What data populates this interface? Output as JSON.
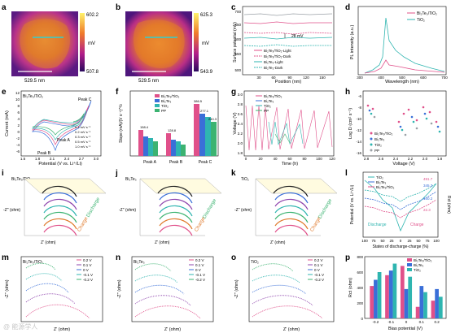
{
  "panels": {
    "a": {
      "letter": "a",
      "scale": "529.5 nm",
      "cb_top": "602.2",
      "cb_unit": "mV",
      "cb_bottom": "507.8"
    },
    "b": {
      "letter": "b",
      "scale": "529.5 nm",
      "cb_top": "625.3",
      "cb_unit": "mV",
      "cb_bottom": "543.9"
    },
    "c": {
      "letter": "c",
      "ylabel": "Surface potential (mV)",
      "xlabel": "Position (nm)",
      "yticks": [
        "500",
        "550",
        "600",
        "650",
        "700"
      ],
      "xticks": [
        "30",
        "60",
        "90",
        "120",
        "150"
      ],
      "annot": "28 mV",
      "legend": [
        "Bi₂Te₃/TiO₂-Light",
        "Bi₂Te₃/TiO₂-Dark",
        "Bi₂Te₃-Light",
        "Bi₂Te₃-Dark"
      ]
    },
    "d": {
      "letter": "d",
      "ylabel": "PL intensity (a.u.)",
      "xlabel": "Wavelength (nm)",
      "xticks": [
        "300",
        "400",
        "500",
        "600",
        "700"
      ],
      "legend": [
        "Bi₂Te₃/TiO₂",
        "TiO₂"
      ]
    },
    "e": {
      "letter": "e",
      "title": "Bi₂Te₃/TiO₂",
      "ylabel": "Current (mA)",
      "xlabel": "Potential (V vs. Li⁺/Li)",
      "xticks": [
        "1.5",
        "1.8",
        "2.1",
        "2.4",
        "2.7",
        "3.0"
      ],
      "yticks": [
        "12",
        "10",
        "8",
        "6",
        "4",
        "2",
        "0",
        "-2",
        "-4",
        "-6"
      ],
      "peaks": [
        "Peak A",
        "Peak B",
        "Peak C"
      ],
      "legend": [
        "0.1 mV s⁻¹",
        "0.2 mV s⁻¹",
        "0.3 mV s⁻¹",
        "0.5 mV s⁻¹",
        "1.0 mV s⁻¹"
      ]
    },
    "f": {
      "letter": "f",
      "ylabel": "Slope (mA)/(V s⁻¹)^½",
      "groups": [
        "Peak A",
        "Peak B",
        "Peak C"
      ],
      "legend": [
        "Bi₂Te₃/TiO₂",
        "Bi₂Te₃",
        "TiO₂",
        "PP"
      ],
      "values": [
        "158.4",
        "128.8",
        "386.5",
        "120.1",
        "98.2",
        "277.1",
        "84.3",
        "84.3",
        "240.3"
      ]
    },
    "g": {
      "letter": "g",
      "ylabel": "Voltage (V)",
      "xlabel": "Time (h)",
      "yticks": [
        "1.8",
        "2.0",
        "2.2",
        "2.4",
        "2.6",
        "2.8",
        "3.0"
      ],
      "xticks": [
        "0",
        "20",
        "40",
        "60",
        "80",
        "100",
        "120"
      ],
      "legend": [
        "Bi₂Te₃/TiO₂",
        "Bi₂Te₃",
        "TiO₂",
        "PP"
      ]
    },
    "h": {
      "letter": "h",
      "ylabel": "Log D (cm² s⁻¹)",
      "xlabel": "Voltage (V)",
      "yticks": [
        "-6",
        "-8",
        "-10",
        "-12",
        "-14",
        "-16"
      ],
      "xticks": [
        "2.8",
        "2.6",
        "2.4",
        "2.2",
        "2.0",
        "1.8"
      ],
      "legend": [
        "Bi₂Te₃/TiO₂",
        "Bi₂Te₃",
        "TiO₂",
        "PP"
      ]
    },
    "i": {
      "letter": "i",
      "title": "Bi₂Te₃/TiO₂",
      "zlabel": "Z' (ohm)",
      "ylabel": "-Z'' (ohm)",
      "charge": "Charge",
      "discharge": "Discharge"
    },
    "j": {
      "letter": "j",
      "title": "Bi₂Te₃",
      "zlabel": "Z' (ohm)",
      "ylabel": "-Z'' (ohm)",
      "charge": "Charge",
      "discharge": "Discharge"
    },
    "k": {
      "letter": "k",
      "title": "TiO₂",
      "zlabel": "Z' (ohm)",
      "ylabel": "-Z'' (ohm)",
      "charge": "Charge",
      "discharge": "Discharge"
    },
    "l": {
      "letter": "l",
      "ylabel": "Potential (V vs. Li⁺/Li)",
      "ylabel2": "Rct (ohm)",
      "xlabel": "States of discharge-charge (%)",
      "xticks": [
        "100",
        "75",
        "50",
        "25",
        "0",
        "25",
        "50",
        "75",
        "100"
      ],
      "legend": [
        "TiO₂",
        "Bi₂Te₃",
        "Bi₂Te₃/TiO₂"
      ],
      "discharge": "Discharge",
      "charge": "Charge",
      "vals": [
        "491.7",
        "345.3",
        "160.2",
        "22.3"
      ]
    },
    "m": {
      "letter": "m",
      "title": "Bi₂Te₃/TiO₂",
      "ylabel": "-Z'' (ohm)",
      "xlabel": "Z' (ohm)",
      "legend": [
        "0.2 V",
        "0.1 V",
        "0 V",
        "-0.1 V",
        "-0.2 V"
      ]
    },
    "n": {
      "letter": "n",
      "title": "Bi₂Te₃",
      "ylabel": "-Z'' (ohm)",
      "xlabel": "Z' (ohm)",
      "legend": [
        "0.2 V",
        "0.1 V",
        "0 V",
        "-0.1 V",
        "-0.2 V"
      ]
    },
    "o": {
      "letter": "o",
      "title": "TiO₂",
      "ylabel": "-Z'' (ohm)",
      "xlabel": "Z' (ohm)",
      "legend": [
        "0.2 V",
        "0.1 V",
        "0 V",
        "-0.1 V",
        "-0.2 V"
      ]
    },
    "p": {
      "letter": "p",
      "ylabel": "Rct (ohm)",
      "xlabel": "Bias potential (V)",
      "xticks": [
        "-0.2",
        "-0.1",
        "0",
        "0.1",
        "0.2"
      ],
      "yticks": [
        "0",
        "200",
        "400",
        "600",
        "800"
      ],
      "legend": [
        "Bi₂Te₃/TiO₂",
        "Bi₂Te₃",
        "TiO₂"
      ]
    }
  },
  "chart_data": [
    {
      "type": "bar",
      "panel": "p",
      "categories": [
        "-0.2",
        "-0.1",
        "0",
        "0.1",
        "0.2"
      ],
      "series": [
        {
          "name": "Bi₂Te₃/TiO₂",
          "values": [
            420,
            560,
            680,
            150,
            230
          ]
        },
        {
          "name": "Bi₂Te₃",
          "values": [
            500,
            620,
            380,
            420,
            380
          ]
        },
        {
          "name": "TiO₂",
          "values": [
            600,
            710,
            540,
            340,
            280
          ]
        }
      ],
      "ylim": [
        0,
        800
      ],
      "xlabel": "Bias potential (V)",
      "ylabel": "Rct (ohm)"
    }
  ],
  "colors": {
    "pink": "#e0508a",
    "blue": "#3a6fd8",
    "teal": "#2fb5b0",
    "gray": "#9aa0a6",
    "green": "#3cb371"
  },
  "watermark": "@ 能源学人"
}
